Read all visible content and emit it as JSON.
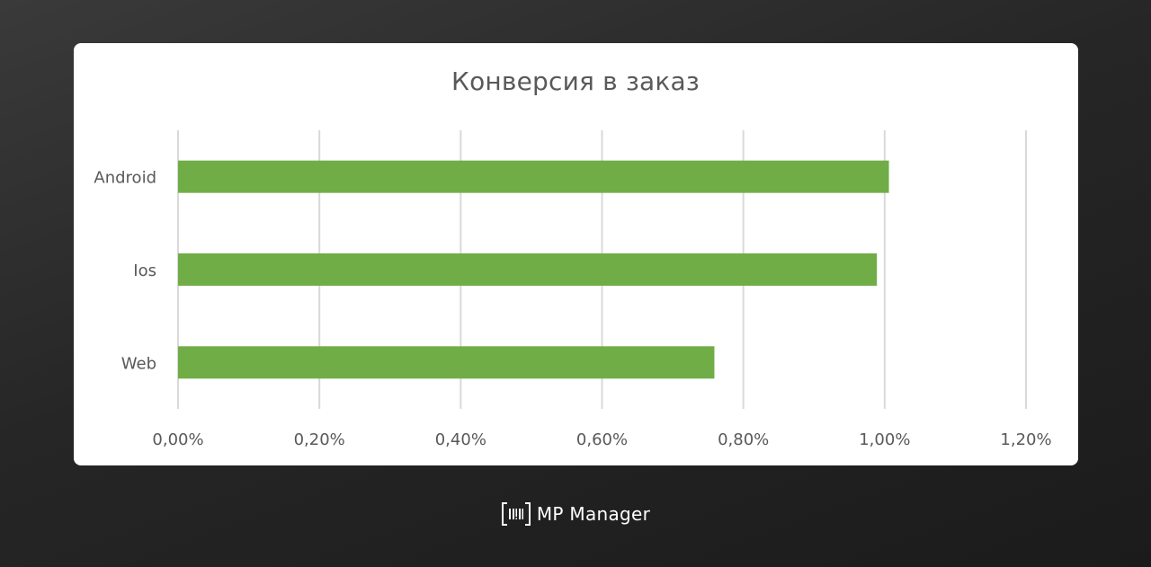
{
  "chart_data": {
    "type": "bar",
    "orientation": "horizontal",
    "title": "Конверсия в заказ",
    "categories": [
      "Android",
      "Ios",
      "Web"
    ],
    "values": [
      1.006,
      0.989,
      0.759
    ],
    "unit": "%",
    "xlim": [
      0,
      1.2
    ],
    "x_ticks": [
      "0,00%",
      "0,20%",
      "0,40%",
      "0,60%",
      "0,80%",
      "1,00%",
      "1,20%"
    ],
    "grid": "vertical",
    "legend": "none",
    "bar_color": "#70ad47"
  },
  "footer": {
    "brand": "MP Manager",
    "logo_icon": "barcode-bracket-icon"
  }
}
